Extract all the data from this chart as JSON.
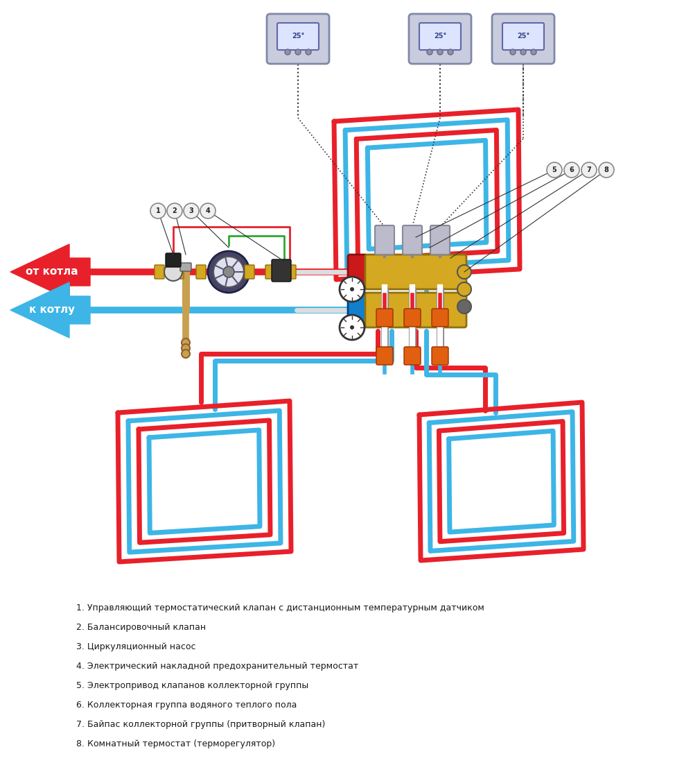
{
  "bg_color": "#ffffff",
  "red_color": "#e8202a",
  "blue_color": "#3db5e6",
  "gold_color": "#d4a820",
  "gray_color": "#a0a0b0",
  "green_color": "#2da830",
  "dark_color": "#333333",
  "legend_items": [
    "1. Управляющий термостатический клапан с дистанционным температурным датчиком",
    "2. Балансировочный клапан",
    "3. Циркуляционный насос",
    "4. Электрический накладной предохранительный термостат",
    "5. Электропривод клапанов коллекторной группы",
    "6. Коллекторная группа водяного теплого пола",
    "7. Байпас коллекторной группы (притворный клапан)",
    "8. Комнатный термостат (терморегулятор)"
  ]
}
